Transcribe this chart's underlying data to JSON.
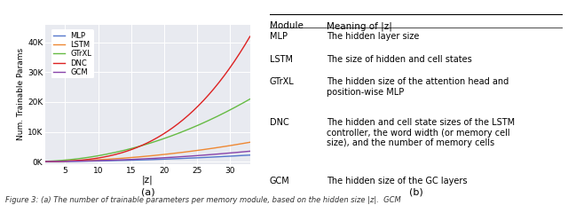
{
  "title_a": "(a)",
  "title_b": "(b)",
  "xlabel": "|z|",
  "ylabel": "Num. Trainable Params",
  "x_ticks": [
    5,
    10,
    15,
    20,
    25,
    30
  ],
  "y_ticks_labels": [
    "0K",
    "10K",
    "20K",
    "30K",
    "40K"
  ],
  "y_ticks_values": [
    0,
    10000,
    20000,
    30000,
    40000
  ],
  "ylim": [
    -800,
    46000
  ],
  "xlim": [
    2,
    33
  ],
  "bg_color": "#e8eaf0",
  "lines": {
    "MLP": {
      "color": "#5577cc"
    },
    "LSTM": {
      "color": "#ee8833"
    },
    "GTrXL": {
      "color": "#66bb44"
    },
    "DNC": {
      "color": "#dd2222"
    },
    "GCM": {
      "color": "#8844aa"
    }
  },
  "legend_order": [
    "MLP",
    "LSTM",
    "GTrXL",
    "DNC",
    "GCM"
  ],
  "table_header": [
    "Module",
    "Meaning of |z|"
  ],
  "table_rows": [
    [
      "MLP",
      "The hidden layer size"
    ],
    [
      "LSTM",
      "The size of hidden and cell states"
    ],
    [
      "GTrXL",
      "The hidden size of the attention head and\nposition-wise MLP"
    ],
    [
      "DNC",
      "The hidden and cell state sizes of the LSTM\ncontroller, the word width (or memory cell\nsize), and the number of memory cells"
    ],
    [
      "GCM",
      "The hidden size of the GC layers"
    ]
  ],
  "caption": "Figure 3: (a) The number of trainable parameters per memory module, based on the hidden size |z|.  GCM",
  "figsize": [
    6.4,
    2.31
  ]
}
